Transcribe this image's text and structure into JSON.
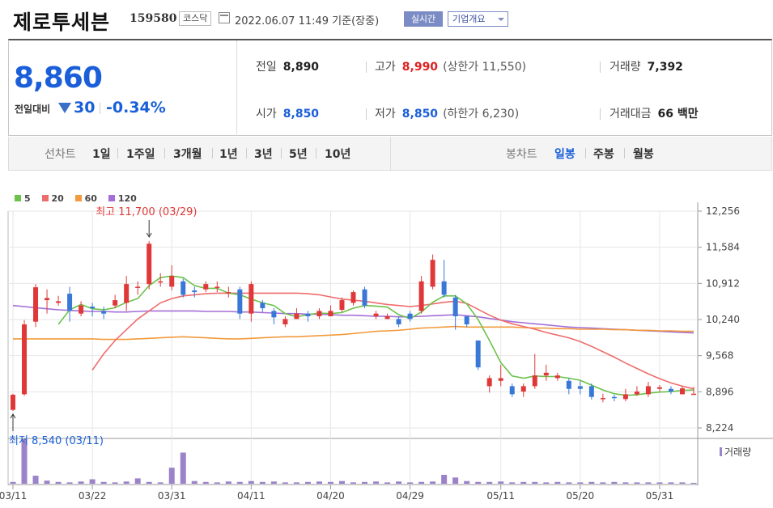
{
  "header": {
    "name": "제로투세븐",
    "code": "159580",
    "market": "코스닥",
    "timestamp": "2022.06.07 11:49",
    "basis": "기준(장중)",
    "realtime_button": "실시간",
    "company_button": "기업개요"
  },
  "quote": {
    "price": "8,860",
    "change_label": "전일대비",
    "change": "30",
    "change_pct": "-0.34%",
    "prev_close_label": "전일",
    "prev_close": "8,890",
    "high_label": "고가",
    "high": "8,990",
    "upper_limit": "(상한가 11,550)",
    "volume_label": "거래량",
    "volume": "7,392",
    "open_label": "시가",
    "open": "8,850",
    "low_label": "저가",
    "low": "8,850",
    "lower_limit": "(하한가 6,230)",
    "value_label": "거래대금",
    "value": "66 백만"
  },
  "period_bar": {
    "line_chart_label": "선차트",
    "line_periods": [
      "1일",
      "1주일",
      "3개월",
      "1년",
      "3년",
      "5년",
      "10년"
    ],
    "candle_chart_label": "봉차트",
    "candle_periods": [
      "일봉",
      "주봉",
      "월봉"
    ],
    "active_candle_period": "일봉"
  },
  "colors": {
    "up": "#e03838",
    "down": "#3a78d8",
    "ma5": "#6cc24a",
    "ma20": "#ef6c6c",
    "ma60": "#f29a3c",
    "ma120": "#a46fd6",
    "volume": "#9b82c9"
  },
  "chart_data": {
    "type": "candlestick",
    "legend": [
      {
        "name": "5",
        "color": "#6cc24a"
      },
      {
        "name": "20",
        "color": "#ef6c6c"
      },
      {
        "name": "60",
        "color": "#f29a3c"
      },
      {
        "name": "120",
        "color": "#a46fd6"
      }
    ],
    "y_ticks": [
      "12,256",
      "11,584",
      "10,912",
      "10,240",
      "9,568",
      "8,896",
      "8,224"
    ],
    "ylim": [
      8224,
      12256
    ],
    "x_ticks": [
      "03/11",
      "03/22",
      "03/31",
      "04/11",
      "04/20",
      "04/29",
      "05/11",
      "05/20",
      "05/31"
    ],
    "x_tick_index": [
      0,
      7,
      14,
      21,
      28,
      35,
      43,
      50,
      57
    ],
    "annotation_high": "최고 11,700 (03/29)",
    "annotation_high_value": 11700,
    "annotation_high_index": 12,
    "annotation_low": "최저 8,540 (03/11)",
    "annotation_low_value": 8540,
    "annotation_low_index": 0,
    "volume_legend": "거래량",
    "candles": [
      [
        8560,
        8840,
        8540,
        8860
      ],
      [
        8850,
        10150,
        8820,
        10230
      ],
      [
        10200,
        10840,
        10100,
        10900
      ],
      [
        10600,
        10640,
        10350,
        10800
      ],
      [
        10550,
        10580,
        10500,
        10680
      ],
      [
        10720,
        10400,
        10200,
        10850
      ],
      [
        10350,
        10500,
        10300,
        10580
      ],
      [
        10480,
        10450,
        10300,
        10550
      ],
      [
        10400,
        10350,
        10250,
        10480
      ],
      [
        10500,
        10600,
        10450,
        10700
      ],
      [
        10550,
        10900,
        10400,
        11050
      ],
      [
        10850,
        10850,
        10700,
        10950
      ],
      [
        10900,
        11650,
        10800,
        11700
      ],
      [
        10950,
        10950,
        10850,
        11100
      ],
      [
        10850,
        11050,
        10780,
        11250
      ],
      [
        10950,
        10700,
        10650,
        11000
      ],
      [
        10780,
        10750,
        10650,
        10850
      ],
      [
        10800,
        10900,
        10750,
        10950
      ],
      [
        10850,
        10850,
        10750,
        10950
      ],
      [
        10750,
        10750,
        10650,
        10850
      ],
      [
        10800,
        10350,
        10250,
        10850
      ],
      [
        10350,
        10900,
        10200,
        10950
      ],
      [
        10550,
        10450,
        10380,
        10600
      ],
      [
        10400,
        10280,
        10150,
        10450
      ],
      [
        10150,
        10250,
        10100,
        10300
      ],
      [
        10250,
        10350,
        10250,
        10450
      ],
      [
        10350,
        10300,
        10200,
        10400
      ],
      [
        10300,
        10400,
        10250,
        10450
      ],
      [
        10300,
        10400,
        10300,
        10500
      ],
      [
        10420,
        10600,
        10380,
        10650
      ],
      [
        10550,
        10750,
        10500,
        10780
      ],
      [
        10800,
        10500,
        10450,
        10850
      ],
      [
        10300,
        10350,
        10250,
        10400
      ],
      [
        10250,
        10300,
        10250,
        10350
      ],
      [
        10250,
        10150,
        10100,
        10300
      ],
      [
        10350,
        10250,
        10200,
        10400
      ],
      [
        10400,
        10950,
        10350,
        11050
      ],
      [
        10850,
        11350,
        10800,
        11450
      ],
      [
        10950,
        10700,
        10650,
        11350
      ],
      [
        10650,
        10300,
        10050,
        10700
      ],
      [
        10300,
        10150,
        10100,
        10300
      ],
      [
        9850,
        9350,
        9300,
        9850
      ],
      [
        9000,
        9150,
        8880,
        9200
      ],
      [
        9100,
        9150,
        9000,
        9400
      ],
      [
        9000,
        8850,
        8800,
        9050
      ],
      [
        8900,
        9000,
        8800,
        9050
      ],
      [
        9000,
        9200,
        8950,
        9600
      ],
      [
        9200,
        9250,
        9100,
        9400
      ],
      [
        9150,
        9200,
        9100,
        9250
      ],
      [
        9100,
        8950,
        8850,
        9150
      ],
      [
        9000,
        8950,
        8850,
        9100
      ],
      [
        9000,
        8800,
        8750,
        9050
      ],
      [
        8780,
        8780,
        8700,
        8860
      ],
      [
        8800,
        8780,
        8720,
        8840
      ],
      [
        8760,
        8850,
        8720,
        8950
      ],
      [
        8850,
        8900,
        8820,
        9000
      ],
      [
        8850,
        9000,
        8800,
        9080
      ],
      [
        8950,
        8980,
        8900,
        9020
      ],
      [
        8950,
        8900,
        8850,
        9000
      ],
      [
        8850,
        8960,
        8850,
        9000
      ],
      [
        8850,
        8860,
        8850,
        8990
      ]
    ],
    "volume": [
      4,
      100,
      18,
      7,
      4,
      3,
      5,
      10,
      4,
      3,
      5,
      12,
      4,
      3,
      36,
      70,
      6,
      4,
      3,
      5,
      4,
      6,
      4,
      5,
      3,
      3,
      4,
      5,
      4,
      6,
      3,
      4,
      5,
      3,
      5,
      3,
      4,
      5,
      20,
      14,
      6,
      4,
      4,
      5,
      3,
      4,
      4,
      3,
      4,
      3,
      3,
      4,
      3,
      4,
      3,
      3,
      3,
      3,
      3,
      3,
      2
    ],
    "ma5": [
      null,
      null,
      null,
      null,
      10150,
      10420,
      10520,
      10440,
      10420,
      10460,
      10560,
      10630,
      10870,
      11020,
      11050,
      11020,
      10870,
      10820,
      10820,
      10730,
      10700,
      10620,
      10550,
      10500,
      10350,
      10290,
      10330,
      10360,
      10350,
      10370,
      10450,
      10500,
      10490,
      10470,
      10330,
      10260,
      10380,
      10560,
      10680,
      10680,
      10530,
      10240,
      9850,
      9440,
      9190,
      9150,
      9190,
      9180,
      9180,
      9150,
      9110,
      9020,
      8930,
      8860,
      8830,
      8840,
      8870,
      8890,
      8900,
      8920,
      8930
    ],
    "ma20": [
      null,
      null,
      null,
      null,
      null,
      null,
      null,
      9300,
      9600,
      9850,
      10050,
      10250,
      10400,
      10550,
      10630,
      10680,
      10700,
      10720,
      10730,
      10730,
      10730,
      10730,
      10730,
      10730,
      10730,
      10730,
      10720,
      10700,
      10660,
      10620,
      10600,
      10580,
      10550,
      10520,
      10500,
      10480,
      10500,
      10530,
      10560,
      10580,
      10540,
      10430,
      10320,
      10230,
      10160,
      10110,
      10060,
      10000,
      9950,
      9900,
      9830,
      9740,
      9640,
      9540,
      9430,
      9330,
      9230,
      9140,
      9060,
      9000,
      8950
    ],
    "ma60": [
      9880,
      9880,
      9880,
      9880,
      9880,
      9880,
      9880,
      9880,
      9870,
      9870,
      9870,
      9880,
      9890,
      9900,
      9910,
      9920,
      9910,
      9900,
      9890,
      9880,
      9880,
      9890,
      9900,
      9910,
      9920,
      9920,
      9930,
      9940,
      9950,
      9960,
      9980,
      10000,
      10020,
      10030,
      10040,
      10060,
      10080,
      10090,
      10100,
      10110,
      10100,
      10100,
      10100,
      10100,
      10100,
      10090,
      10080,
      10080,
      10070,
      10070,
      10060,
      10060,
      10060,
      10050,
      10050,
      10040,
      10040,
      10030,
      10030,
      10020,
      10020
    ],
    "ma120": [
      10500,
      10480,
      10460,
      10440,
      10420,
      10410,
      10400,
      10390,
      10390,
      10380,
      10380,
      10390,
      10400,
      10400,
      10400,
      10400,
      10400,
      10390,
      10390,
      10390,
      10380,
      10380,
      10370,
      10360,
      10350,
      10350,
      10340,
      10340,
      10330,
      10320,
      10320,
      10310,
      10300,
      10300,
      10290,
      10290,
      10300,
      10310,
      10320,
      10330,
      10310,
      10290,
      10260,
      10230,
      10200,
      10180,
      10160,
      10140,
      10120,
      10100,
      10090,
      10080,
      10070,
      10060,
      10050,
      10040,
      10030,
      10020,
      10010,
      10000,
      9990
    ]
  }
}
